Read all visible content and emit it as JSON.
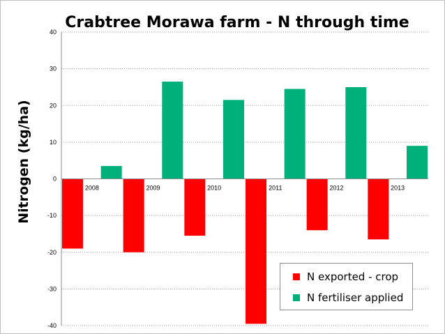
{
  "chart_data": {
    "type": "bar",
    "title": "Crabtree Morawa farm - N through time",
    "xlabel": "",
    "ylabel": "Nitrogen (kg/ha)",
    "categories": [
      "2008",
      "2009",
      "2010",
      "2011",
      "2012",
      "2013"
    ],
    "series": [
      {
        "name": "N exported - crop",
        "color": "#ff0000",
        "values": [
          -19,
          -20,
          -15.5,
          -39.5,
          -14,
          -16.5
        ]
      },
      {
        "name": "N fertiliser applied",
        "color": "#00b07a",
        "values": [
          3.5,
          26.5,
          21.5,
          24.5,
          25,
          9
        ]
      }
    ],
    "ylim": [
      -40,
      40
    ],
    "yticks": [
      40,
      30,
      20,
      10,
      0,
      -10,
      -20,
      -30,
      -40
    ],
    "grid": "horizontal dotted",
    "legend_position": "bottom-right"
  }
}
